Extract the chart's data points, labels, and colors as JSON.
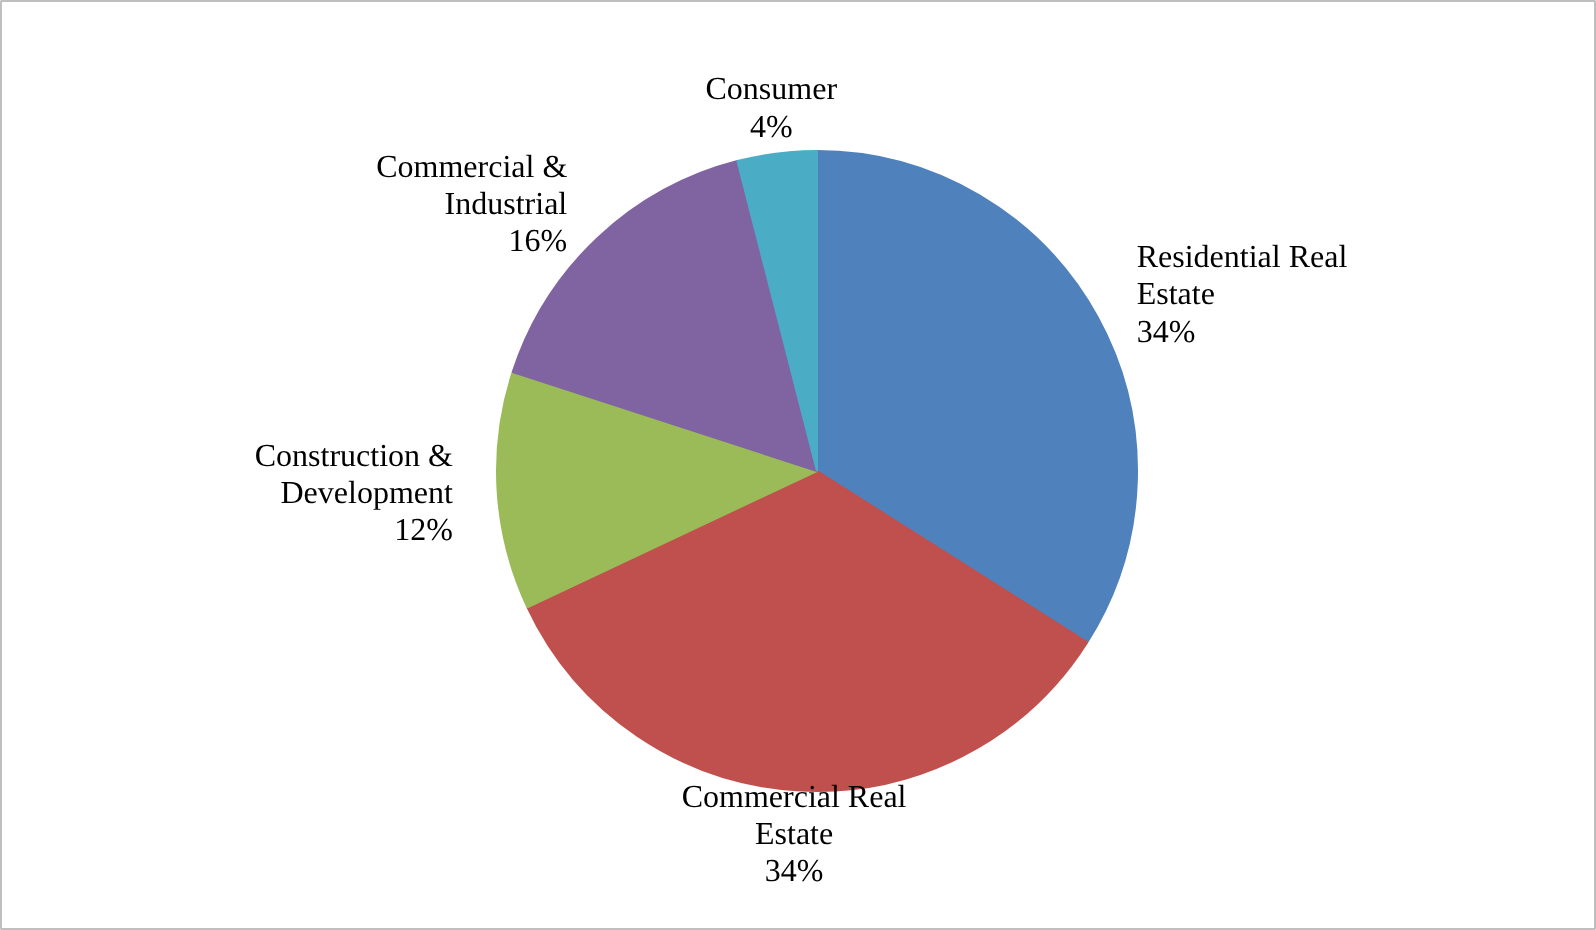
{
  "chart_data": {
    "type": "pie",
    "categories": [
      "Residential Real Estate",
      "Commercial Real Estate",
      "Construction & Development",
      "Commercial & Industrial",
      "Consumer"
    ],
    "values": [
      34,
      34,
      12,
      16,
      4
    ],
    "value_labels": [
      "34%",
      "34%",
      "12%",
      "16%",
      "4%"
    ],
    "colors": [
      "#4f81bd",
      "#c0504d",
      "#9bbb59",
      "#8064a2",
      "#4bacc6"
    ]
  }
}
